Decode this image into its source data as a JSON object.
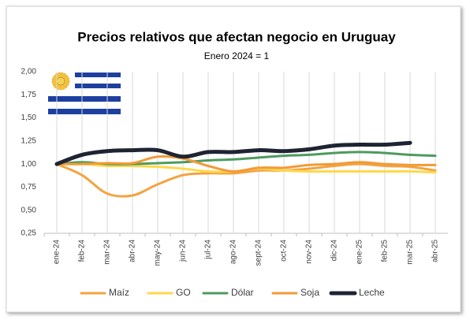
{
  "chart_data": {
    "type": "line",
    "title": "Precios relativos que afectan negocio en Uruguay",
    "subtitle": "Enero 2024 = 1",
    "categories": [
      "ene-24",
      "feb-24",
      "mar-24",
      "abr-24",
      "may-24",
      "jun-24",
      "jul-24",
      "ago-24",
      "sept-24",
      "oct-24",
      "nov-24",
      "dic-24",
      "ene-25",
      "feb-25",
      "mar-25",
      "abr-25"
    ],
    "series": [
      {
        "name": "Maíz",
        "color": "#f4a33e",
        "values": [
          1.0,
          0.88,
          0.68,
          0.66,
          0.78,
          0.88,
          0.9,
          0.9,
          0.93,
          0.93,
          0.95,
          0.98,
          1.0,
          0.98,
          0.97,
          0.93
        ]
      },
      {
        "name": "GO",
        "color": "#ffd84a",
        "values": [
          1.0,
          1.0,
          0.98,
          0.98,
          0.97,
          0.95,
          0.92,
          0.92,
          0.95,
          0.93,
          0.92,
          0.92,
          0.92,
          0.92,
          0.92,
          0.91
        ]
      },
      {
        "name": "Dólar",
        "color": "#4e9a5f",
        "values": [
          1.0,
          1.02,
          1.0,
          1.0,
          1.01,
          1.02,
          1.04,
          1.05,
          1.07,
          1.09,
          1.1,
          1.12,
          1.13,
          1.12,
          1.1,
          1.09
        ]
      },
      {
        "name": "Soja",
        "color": "#f29a38",
        "values": [
          1.0,
          1.0,
          1.01,
          1.01,
          1.08,
          1.06,
          0.98,
          0.92,
          0.96,
          0.96,
          0.99,
          1.0,
          1.02,
          1.0,
          0.99,
          0.99
        ]
      },
      {
        "name": "Leche",
        "color": "#1f2433",
        "values": [
          1.0,
          1.1,
          1.14,
          1.15,
          1.15,
          1.08,
          1.13,
          1.13,
          1.15,
          1.14,
          1.16,
          1.2,
          1.21,
          1.21,
          1.23,
          null
        ]
      }
    ],
    "ylim": [
      0.25,
      2.0
    ],
    "yticks": [
      {
        "value": 0.25,
        "label": "0,25"
      },
      {
        "value": 0.5,
        "label": "0,50"
      },
      {
        "value": 0.75,
        "label": "0,75"
      },
      {
        "value": 1.0,
        "label": "1,00"
      },
      {
        "value": 1.25,
        "label": "1,25"
      },
      {
        "value": 1.5,
        "label": "1,50"
      },
      {
        "value": 1.75,
        "label": "1,75"
      },
      {
        "value": 2.0,
        "label": "2,00"
      }
    ],
    "grid": "x",
    "legend": "bottom"
  }
}
